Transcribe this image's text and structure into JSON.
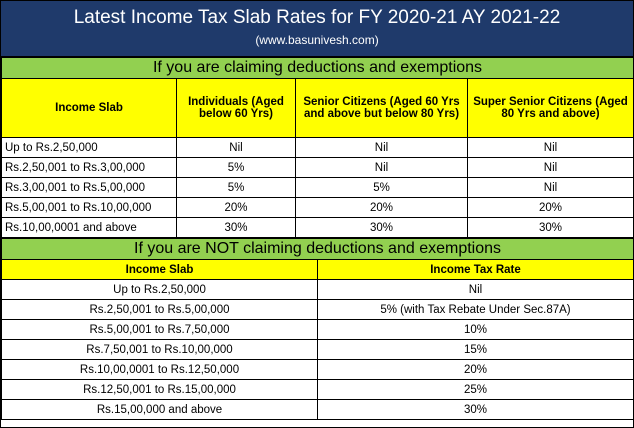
{
  "title": "Latest Income Tax Slab Rates for FY 2020-21 AY 2021-22",
  "subtitle": "(www.basunivesh.com)",
  "section1": {
    "heading": "If you are claiming deductions and exemptions",
    "columns": [
      "Income Slab",
      "Individuals (Aged below 60 Yrs)",
      "Senior Citizens (Aged 60 Yrs and above but below 80 Yrs)",
      "Super Senior Citizens (Aged 80 Yrs and above)"
    ],
    "rows": [
      [
        "Up to Rs.2,50,000",
        "Nil",
        "Nil",
        "Nil"
      ],
      [
        "Rs.2,50,001 to Rs.3,00,000",
        "5%",
        "Nil",
        "Nil"
      ],
      [
        "Rs.3,00,001 to Rs.5,00,000",
        "5%",
        "5%",
        "Nil"
      ],
      [
        "Rs.5,00,001 to Rs.10,00,000",
        "20%",
        "20%",
        "20%"
      ],
      [
        "Rs.10,00,0001 and above",
        "30%",
        "30%",
        "30%"
      ]
    ]
  },
  "section2": {
    "heading": "If you are NOT claiming deductions and exemptions",
    "columns": [
      "Income Slab",
      "Income Tax Rate"
    ],
    "rows": [
      [
        "Up to Rs.2,50,000",
        "Nil"
      ],
      [
        "Rs.2,50,001 to Rs.5,00,000",
        "5% (with Tax Rebate Under Sec.87A)"
      ],
      [
        "Rs.5,00,001 to Rs.7,50,000",
        "10%"
      ],
      [
        "Rs.7,50,001 to Rs.10,00,000",
        "15%"
      ],
      [
        "Rs.10,00,0001 to Rs.12,50,000",
        "20%"
      ],
      [
        "Rs.12,50,001 to Rs.15,00,000",
        "25%"
      ],
      [
        "Rs.15,00,000 and above",
        "30%"
      ]
    ]
  }
}
